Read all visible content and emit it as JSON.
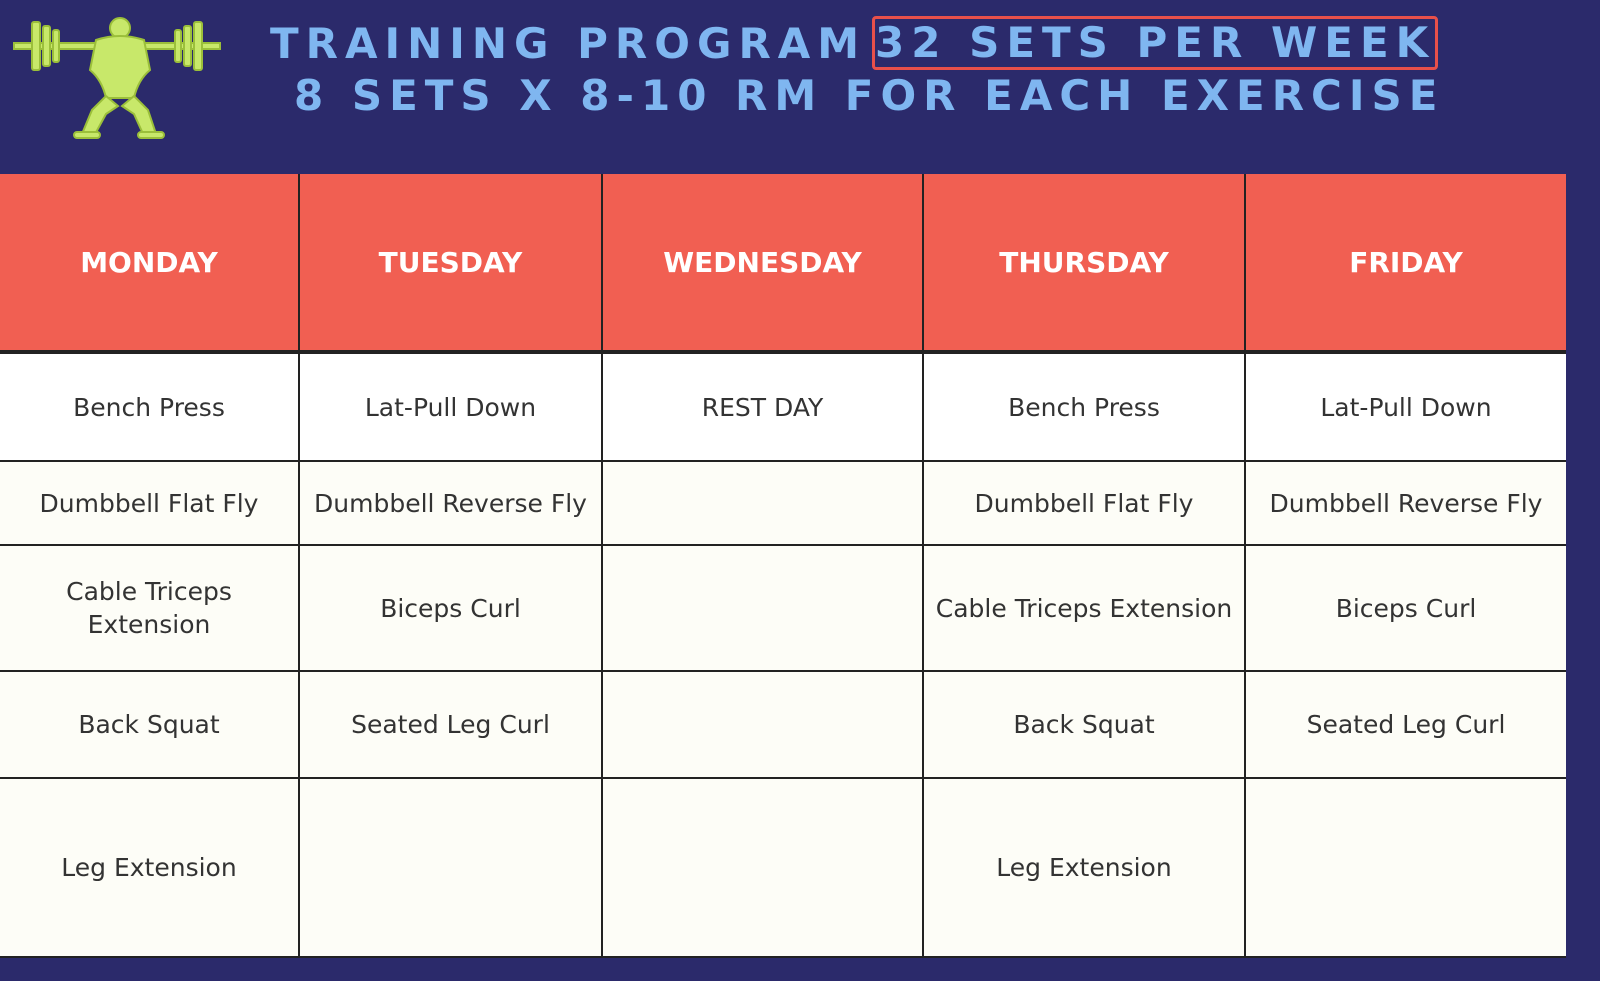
{
  "header": {
    "title": "TRAINING PROGRAM",
    "highlight": "32 SETS PER WEEK",
    "subtitle": "8 SETS X 8-10 RM FOR EACH EXERCISE"
  },
  "table": {
    "columns": [
      {
        "day": "MONDAY",
        "exercises": [
          "Bench Press",
          "Dumbbell Flat Fly",
          "Cable Triceps Extension",
          "Back Squat",
          "Leg Extension"
        ]
      },
      {
        "day": "TUESDAY",
        "exercises": [
          "Lat-Pull Down",
          "Dumbbell Reverse Fly",
          "Biceps Curl",
          "Seated Leg Curl"
        ]
      },
      {
        "day": "WEDNESDAY",
        "exercises": [
          "REST DAY"
        ]
      },
      {
        "day": "THURSDAY",
        "exercises": [
          "Bench Press",
          "Dumbbell Flat Fly",
          "Cable Triceps Extension",
          "Back Squat",
          "Leg Extension"
        ]
      },
      {
        "day": "FRIDAY",
        "exercises": [
          "Lat-Pull Down",
          "Dumbbell Reverse Fly",
          "Biceps Curl",
          "Seated Leg Curl"
        ]
      }
    ]
  }
}
